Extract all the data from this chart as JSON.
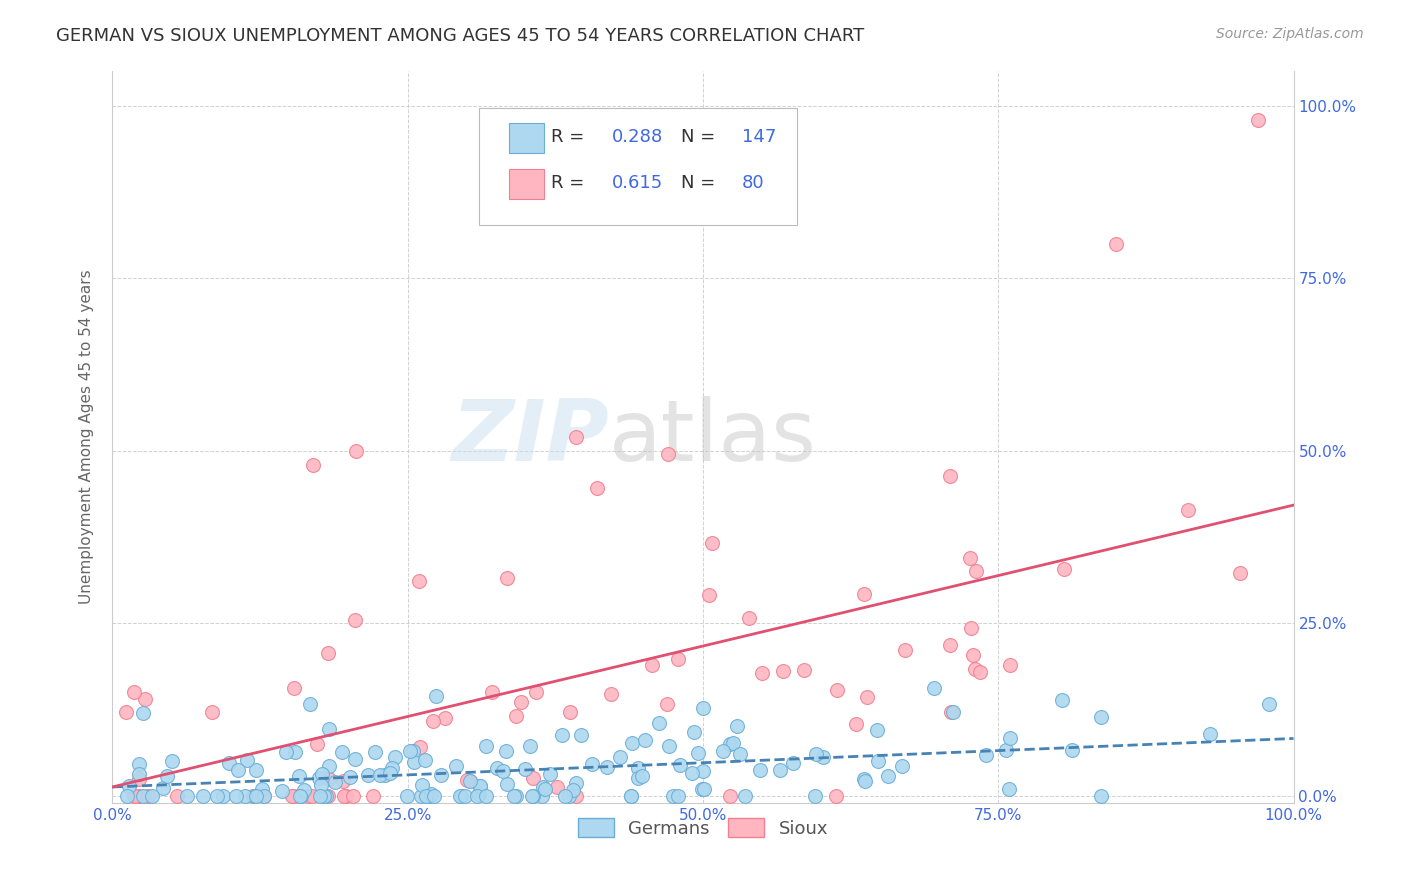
{
  "title": "GERMAN VS SIOUX UNEMPLOYMENT AMONG AGES 45 TO 54 YEARS CORRELATION CHART",
  "source": "Source: ZipAtlas.com",
  "xlabel": "",
  "ylabel": "Unemployment Among Ages 45 to 54 years",
  "xlim": [
    0,
    1
  ],
  "ylim": [
    -0.01,
    1.05
  ],
  "xticks": [
    0.0,
    0.25,
    0.5,
    0.75,
    1.0
  ],
  "yticks": [
    0.0,
    0.25,
    0.5,
    0.75,
    1.0
  ],
  "xtick_labels": [
    "0.0%",
    "25.0%",
    "50.0%",
    "75.0%",
    "100.0%"
  ],
  "ytick_labels": [
    "0.0%",
    "25.0%",
    "50.0%",
    "75.0%",
    "100.0%"
  ],
  "german_color": "#add8f0",
  "german_edge_color": "#6aaed6",
  "sioux_color": "#ffb6c1",
  "sioux_edge_color": "#f08090",
  "german_line_color": "#4682B4",
  "sioux_line_color": "#e05070",
  "german_R": 0.288,
  "german_N": 147,
  "sioux_R": 0.615,
  "sioux_N": 80,
  "legend_label_german": "Germans",
  "legend_label_sioux": "Sioux",
  "watermark_zip": "ZIP",
  "watermark_atlas": "atlas",
  "title_fontsize": 13,
  "axis_label_fontsize": 11,
  "tick_fontsize": 11,
  "legend_fontsize": 13,
  "source_fontsize": 10,
  "background_color": "#ffffff",
  "grid_color": "#cccccc",
  "title_color": "#333333",
  "axis_tick_color": "#4169E1",
  "right_tick_color": "#4169E1"
}
